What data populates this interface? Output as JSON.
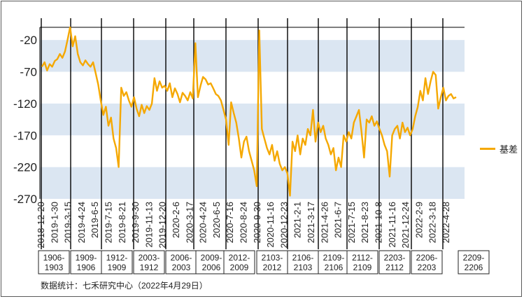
{
  "chart_data": {
    "type": "line",
    "y_ticks": [
      -20,
      -70,
      -120,
      -170,
      -220,
      -270
    ],
    "ylim": [
      -270,
      0
    ],
    "x_ticks": [
      "2018-12-20",
      "2019-1-30",
      "2019-3-15",
      "2019-4-24",
      "2019-6-5",
      "2019-7-15",
      "2019-8-21",
      "2019-9-30",
      "2019-11-13",
      "2019-12-20",
      "2020-2-6",
      "2020-3-17",
      "2020-4-24",
      "2020-6-5",
      "2020-7-16",
      "2020-8-24",
      "2020-9-30",
      "2020-11-16",
      "2020-12-23",
      "2021-2-1",
      "2021-3-17",
      "2021-4-26",
      "2021-6-7",
      "2021-7-15",
      "2021-8-23",
      "2021-10-8",
      "2021-11-16",
      "2021-12-24",
      "2022-2-9",
      "2022-3-18",
      "2022-4-28"
    ],
    "contract_boxes": [
      "1906-1903",
      "1909-1906",
      "1912-1909",
      "2003-1912",
      "2006-2003",
      "2009-2006",
      "2012-2009",
      "2103-2012",
      "2106-2103",
      "2109-2106",
      "2112-2109",
      "2203-2112",
      "2206-2203",
      "2209-2206"
    ],
    "series": [
      {
        "name": "基差",
        "color": "#f5a800",
        "points": [
          [
            0,
            -62
          ],
          [
            1,
            -55
          ],
          [
            2,
            -68
          ],
          [
            3,
            -58
          ],
          [
            4,
            -62
          ],
          [
            5,
            -53
          ],
          [
            6,
            -50
          ],
          [
            7,
            -42
          ],
          [
            8,
            -48
          ],
          [
            9,
            -38
          ],
          [
            10,
            -20
          ],
          [
            11,
            0
          ],
          [
            12,
            -30
          ],
          [
            13,
            -14
          ],
          [
            14,
            -42
          ],
          [
            15,
            -55
          ],
          [
            16,
            -60
          ],
          [
            17,
            -52
          ],
          [
            18,
            -58
          ],
          [
            19,
            -62
          ],
          [
            20,
            -55
          ],
          [
            21,
            -72
          ],
          [
            22,
            -90
          ],
          [
            23,
            -115
          ],
          [
            24,
            -138
          ],
          [
            25,
            -125
          ],
          [
            26,
            -155
          ],
          [
            27,
            -142
          ],
          [
            28,
            -175
          ],
          [
            29,
            -190
          ],
          [
            30,
            -220
          ],
          [
            31,
            -95
          ],
          [
            32,
            -108
          ],
          [
            33,
            -102
          ],
          [
            34,
            -115
          ],
          [
            35,
            -125
          ],
          [
            36,
            -110
          ],
          [
            37,
            -128
          ],
          [
            38,
            -140
          ],
          [
            39,
            -122
          ],
          [
            40,
            -135
          ],
          [
            41,
            -124
          ],
          [
            42,
            -130
          ],
          [
            43,
            -120
          ],
          [
            44,
            -80
          ],
          [
            45,
            -100
          ],
          [
            46,
            -85
          ],
          [
            47,
            -95
          ],
          [
            48,
            -92
          ],
          [
            49,
            -100
          ],
          [
            50,
            -88
          ],
          [
            51,
            -110
          ],
          [
            52,
            -96
          ],
          [
            53,
            -105
          ],
          [
            54,
            -118
          ],
          [
            55,
            -103
          ],
          [
            56,
            -108
          ],
          [
            57,
            -115
          ],
          [
            58,
            -102
          ],
          [
            59,
            -112
          ],
          [
            60,
            -25
          ],
          [
            61,
            -110
          ],
          [
            62,
            -92
          ],
          [
            63,
            -78
          ],
          [
            64,
            -82
          ],
          [
            65,
            -90
          ],
          [
            66,
            -88
          ],
          [
            67,
            -96
          ],
          [
            68,
            -105
          ],
          [
            69,
            -108
          ],
          [
            70,
            -115
          ],
          [
            71,
            -130
          ],
          [
            72,
            -145
          ],
          [
            73,
            -185
          ],
          [
            74,
            -118
          ],
          [
            75,
            -135
          ],
          [
            76,
            -150
          ],
          [
            77,
            -175
          ],
          [
            78,
            -205
          ],
          [
            79,
            -180
          ],
          [
            80,
            -172
          ],
          [
            81,
            -195
          ],
          [
            82,
            -210
          ],
          [
            83,
            -225
          ],
          [
            84,
            -250
          ],
          [
            85,
            -5
          ],
          [
            86,
            -160
          ],
          [
            87,
            -175
          ],
          [
            88,
            -190
          ],
          [
            89,
            -200
          ],
          [
            90,
            -185
          ],
          [
            91,
            -210
          ],
          [
            92,
            -195
          ],
          [
            93,
            -215
          ],
          [
            94,
            -225
          ],
          [
            95,
            -220
          ],
          [
            96,
            -230
          ],
          [
            97,
            -265
          ],
          [
            98,
            -180
          ],
          [
            99,
            -195
          ],
          [
            100,
            -170
          ],
          [
            101,
            -200
          ],
          [
            102,
            -175
          ],
          [
            103,
            -185
          ],
          [
            104,
            -160
          ],
          [
            105,
            -170
          ],
          [
            106,
            -130
          ],
          [
            107,
            -180
          ],
          [
            108,
            -150
          ],
          [
            109,
            -165
          ],
          [
            110,
            -155
          ],
          [
            111,
            -175
          ],
          [
            112,
            -185
          ],
          [
            113,
            -200
          ],
          [
            114,
            -190
          ],
          [
            115,
            -225
          ],
          [
            116,
            -205
          ],
          [
            117,
            -220
          ],
          [
            118,
            -170
          ],
          [
            119,
            -180
          ],
          [
            120,
            -165
          ],
          [
            121,
            -175
          ],
          [
            122,
            -150
          ],
          [
            123,
            -140
          ],
          [
            124,
            -130
          ],
          [
            125,
            -165
          ],
          [
            126,
            -205
          ],
          [
            127,
            -145
          ],
          [
            128,
            -150
          ],
          [
            129,
            -140
          ],
          [
            130,
            -155
          ],
          [
            131,
            -148
          ],
          [
            132,
            -160
          ],
          [
            133,
            -170
          ],
          [
            134,
            -185
          ],
          [
            135,
            -195
          ],
          [
            136,
            -235
          ],
          [
            137,
            -170
          ],
          [
            138,
            -160
          ],
          [
            139,
            -155
          ],
          [
            140,
            -175
          ],
          [
            141,
            -150
          ],
          [
            142,
            -165
          ],
          [
            143,
            -158
          ],
          [
            144,
            -170
          ],
          [
            145,
            -160
          ],
          [
            146,
            -140
          ],
          [
            147,
            -125
          ],
          [
            148,
            -100
          ],
          [
            149,
            -115
          ],
          [
            150,
            -80
          ],
          [
            151,
            -105
          ],
          [
            152,
            -85
          ],
          [
            153,
            -70
          ],
          [
            154,
            -75
          ],
          [
            155,
            -128
          ],
          [
            156,
            -110
          ],
          [
            157,
            -95
          ],
          [
            158,
            -115
          ],
          [
            159,
            -108
          ],
          [
            160,
            -105
          ],
          [
            161,
            -112
          ],
          [
            162,
            -110
          ]
        ]
      }
    ]
  },
  "legend": {
    "label": "基差"
  },
  "source": "数据统计：七禾研究中心（2022年4月29日）"
}
